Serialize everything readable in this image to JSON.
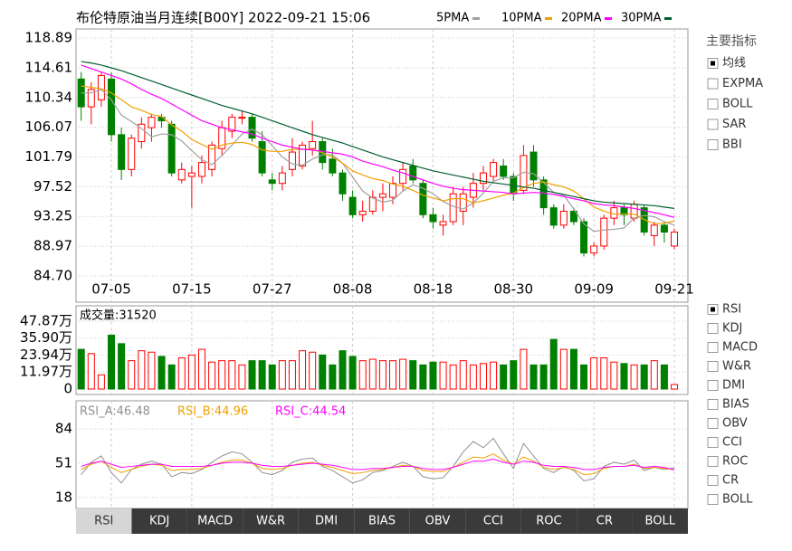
{
  "header": {
    "title": "布伦特原油当月连续[B00Y] 2022-09-21 15:06"
  },
  "chart_data": [
    {
      "type": "candlestick",
      "categories": [
        null,
        null,
        null,
        "07-05",
        null,
        null,
        null,
        null,
        null,
        null,
        null,
        "07-15",
        null,
        null,
        null,
        null,
        null,
        null,
        null,
        "07-27",
        null,
        null,
        null,
        null,
        null,
        null,
        null,
        "08-08",
        null,
        null,
        null,
        null,
        null,
        null,
        null,
        "08-18",
        null,
        null,
        null,
        null,
        null,
        null,
        null,
        "08-30",
        null,
        null,
        null,
        null,
        null,
        null,
        null,
        "09-09",
        null,
        null,
        null,
        null,
        null,
        null,
        null,
        "09-21"
      ],
      "open": [
        113,
        109,
        110,
        113,
        105,
        100,
        104,
        106,
        107.5,
        106.5,
        98.5,
        99,
        99,
        100,
        103,
        105.5,
        107.5,
        107.5,
        104,
        98.5,
        98,
        100,
        100.5,
        103,
        104,
        101.5,
        99.5,
        96,
        93.5,
        94,
        96,
        96,
        98,
        100.5,
        98,
        93.5,
        92,
        92.5,
        94,
        96,
        98,
        99,
        100.5,
        99,
        97,
        102.5,
        98.5,
        94.5,
        92,
        94,
        92.5,
        88,
        89,
        93,
        94.5,
        93,
        94.5,
        90.5,
        92,
        89
      ],
      "high": [
        114,
        112.5,
        114,
        114,
        106,
        105,
        107.5,
        108,
        108,
        107,
        101,
        100.5,
        102,
        104,
        107,
        108,
        108.5,
        108,
        105.5,
        99.5,
        100.5,
        104.5,
        104,
        107,
        104.5,
        103,
        100,
        97,
        95.5,
        97,
        98,
        99,
        101,
        101.5,
        98.5,
        94.5,
        93.5,
        97.5,
        97.5,
        99.5,
        100.5,
        101.5,
        101.5,
        99.5,
        103.5,
        103.5,
        99,
        95,
        95,
        94.5,
        93,
        89.5,
        93.5,
        95.5,
        95,
        95.5,
        95,
        92.5,
        92.5,
        91.5
      ],
      "low": [
        107,
        106.5,
        109,
        104,
        98.5,
        99,
        103,
        104,
        106,
        99,
        98,
        94.5,
        98,
        99,
        102,
        104.5,
        106.5,
        104,
        99,
        97,
        97,
        99,
        100,
        102,
        100,
        99,
        95.5,
        93,
        92.5,
        93.5,
        94,
        95,
        97,
        98,
        93,
        91.5,
        90.5,
        92,
        92,
        94.5,
        97,
        98,
        98.5,
        95.5,
        96.5,
        97.5,
        93.5,
        91.5,
        91.5,
        92,
        87.5,
        87.5,
        88.5,
        92,
        92,
        92.5,
        90.5,
        89,
        89.5,
        88.5
      ],
      "close": [
        109,
        111.5,
        113.5,
        105,
        100,
        104.5,
        106.5,
        107.5,
        107,
        99.5,
        100,
        99.5,
        101,
        103.5,
        106,
        107.5,
        107.5,
        104.5,
        99.5,
        98,
        99.5,
        102.5,
        103.5,
        104,
        101,
        99.5,
        96.5,
        93.5,
        94,
        96,
        96.5,
        98,
        100,
        98.5,
        93.5,
        92.5,
        92.5,
        96.5,
        96.5,
        98,
        99.5,
        101,
        99,
        96.5,
        102,
        98.5,
        94.5,
        92,
        94,
        92.5,
        88,
        89,
        93,
        94.5,
        93.5,
        95,
        91,
        92,
        91,
        91
      ],
      "up_color": "#ff0000",
      "down_color": "#008000",
      "ylim": [
        84.7,
        118.89
      ],
      "yticks": [
        {
          "value": 84.7,
          "label": "84.70"
        },
        88.97,
        93.25,
        97.52,
        101.79,
        106.07,
        110.34,
        114.61,
        118.89
      ],
      "grid": true,
      "series": [
        {
          "name": "5PMA",
          "color": "#a0a0a0",
          "values": [
            111,
            111,
            111.5,
            110,
            107.8,
            106.9,
            105.9,
            104.7,
            105.1,
            105,
            104.1,
            102.7,
            101.4,
            100.7,
            102,
            103.5,
            105.1,
            105.8,
            105,
            103.4,
            101.8,
            100.8,
            100.6,
            101.5,
            102.1,
            102.1,
            100.9,
            98.9,
            96.9,
            95.9,
            95.3,
            95.6,
            96.9,
            97.8,
            97.3,
            96.5,
            95.4,
            94.7,
            94.3,
            95.2,
            96.6,
            98.3,
            98.8,
            98.8,
            99.6,
            99.4,
            98.1,
            96.7,
            96.3,
            94.3,
            92.2,
            91.1,
            91.3,
            91.4,
            91.6,
            93,
            93.4,
            93.2,
            92.5,
            92
          ]
        },
        {
          "name": "10PMA",
          "color": "#f0a000",
          "values": [
            112,
            111.8,
            111.6,
            111,
            110,
            109,
            108.5,
            107.9,
            107.6,
            106.4,
            105.5,
            104.3,
            103.6,
            102.9,
            103.5,
            103.8,
            103.9,
            103.6,
            102.8,
            102.6,
            102.6,
            102.9,
            102.9,
            102.9,
            102.4,
            101.8,
            100.9,
            99.8,
            99.2,
            98.7,
            98.4,
            97.9,
            97.6,
            97,
            96.3,
            95.9,
            95.5,
            95.8,
            95.8,
            95.2,
            95.5,
            95.9,
            96.3,
            96.6,
            97.4,
            98,
            98.2,
            97.8,
            97.5,
            96.9,
            95.8,
            94.6,
            94,
            93.6,
            93.6,
            93.6,
            92.8,
            92.2,
            92.3,
            92.6
          ]
        },
        {
          "name": "20PMA",
          "color": "#ff00ff",
          "values": [
            115,
            114.5,
            114,
            113.5,
            113,
            112.3,
            111.5,
            110.8,
            110.2,
            109.4,
            108.6,
            107.8,
            107,
            106.5,
            106,
            105.7,
            105.4,
            105.1,
            104.5,
            104,
            103.5,
            103.2,
            102.9,
            102.8,
            102.6,
            102.4,
            102.2,
            101.8,
            101.2,
            100.8,
            100.4,
            99.9,
            99.5,
            99,
            98.5,
            98,
            97.6,
            97.3,
            97.1,
            97,
            96.9,
            96.8,
            96.7,
            96.5,
            96.6,
            96.7,
            96.6,
            96.4,
            96.1,
            95.8,
            95.5,
            95.1,
            94.9,
            94.8,
            94.6,
            94.4,
            94.1,
            93.8,
            93.5,
            93.1
          ]
        },
        {
          "name": "30PMA",
          "color": "#006030",
          "values": [
            115.5,
            115.3,
            115,
            114.6,
            114.2,
            113.7,
            113.2,
            112.7,
            112.2,
            111.7,
            111.2,
            110.7,
            110.2,
            109.7,
            109.2,
            108.8,
            108.4,
            108,
            107.5,
            107,
            106.5,
            106,
            105.5,
            105,
            104.6,
            104.2,
            103.8,
            103.3,
            102.8,
            102.3,
            101.8,
            101.4,
            101,
            100.6,
            100.2,
            99.8,
            99.5,
            99.2,
            98.9,
            98.6,
            98.3,
            98.1,
            97.9,
            97.7,
            97.5,
            97.3,
            97,
            96.7,
            96.4,
            96.1,
            95.8,
            95.5,
            95.3,
            95.2,
            95.1,
            95,
            94.9,
            94.8,
            94.6,
            94.4
          ]
        }
      ]
    },
    {
      "type": "bar",
      "label": "成交量:31520",
      "values": [
        28,
        25,
        10,
        38,
        32,
        20,
        27,
        26,
        23,
        17,
        22,
        24,
        28,
        19,
        20,
        20,
        17,
        20,
        20,
        17,
        20,
        20,
        27,
        26,
        24,
        17,
        27,
        23,
        20,
        21,
        20,
        20,
        21,
        20,
        17,
        19,
        19,
        17,
        20,
        17,
        18,
        19,
        17,
        20,
        28,
        17,
        17,
        35,
        28,
        28,
        17,
        22,
        22,
        19,
        18,
        17,
        17,
        20,
        17,
        3.15
      ],
      "ylim": [
        0,
        57.4
      ],
      "yticks": [
        0,
        {
          "value": 11.97,
          "label": "11.97万"
        },
        {
          "value": 23.94,
          "label": "23.94万"
        },
        {
          "value": 35.9,
          "label": "35.90万"
        },
        {
          "value": 47.87,
          "label": "47.87万"
        }
      ]
    },
    {
      "type": "line",
      "series": [
        {
          "name": "RSI_A:46.48",
          "color": "#909090",
          "values": [
            40,
            52,
            58,
            42,
            32,
            45,
            50,
            53,
            50,
            38,
            42,
            41,
            45,
            52,
            58,
            62,
            60,
            52,
            42,
            40,
            44,
            52,
            55,
            56,
            48,
            44,
            38,
            32,
            35,
            42,
            44,
            48,
            52,
            48,
            38,
            36,
            37,
            48,
            62,
            72,
            66,
            75,
            60,
            46,
            70,
            58,
            46,
            42,
            48,
            44,
            34,
            36,
            48,
            52,
            50,
            54,
            44,
            47,
            45,
            46.48
          ]
        },
        {
          "name": "RSI_B:44.96",
          "color": "#f0a000",
          "values": [
            45,
            50,
            53,
            47,
            42,
            45,
            48,
            50,
            49,
            44,
            45,
            45,
            46,
            49,
            52,
            54,
            54,
            51,
            46,
            45,
            46,
            49,
            51,
            52,
            49,
            47,
            44,
            41,
            42,
            44,
            45,
            47,
            49,
            48,
            44,
            43,
            43,
            47,
            52,
            57,
            56,
            60,
            54,
            50,
            57,
            53,
            47,
            45,
            47,
            45,
            40,
            41,
            46,
            48,
            48,
            50,
            46,
            47,
            46,
            44.96
          ]
        },
        {
          "name": "RSI_C:44.54",
          "color": "#ff00ff",
          "values": [
            48,
            51,
            53,
            50,
            47,
            48,
            49,
            50,
            50,
            48,
            48,
            48,
            48,
            49,
            51,
            52,
            52,
            51,
            49,
            48,
            48,
            49,
            50,
            51,
            50,
            49,
            47,
            45,
            45,
            46,
            46,
            47,
            48,
            48,
            46,
            45,
            45,
            47,
            50,
            53,
            53,
            55,
            52,
            50,
            53,
            52,
            49,
            48,
            48,
            47,
            45,
            45,
            47,
            48,
            48,
            49,
            47,
            48,
            47,
            44.54
          ]
        }
      ],
      "ylim": [
        10,
        92
      ],
      "yticks": [
        18,
        51,
        84
      ]
    }
  ],
  "sidebar": {
    "title": "主要指标",
    "main": [
      {
        "label": "均线",
        "checked": true
      },
      {
        "label": "EXPMA",
        "checked": false
      },
      {
        "label": "BOLL",
        "checked": false
      },
      {
        "label": "SAR",
        "checked": false
      },
      {
        "label": "BBI",
        "checked": false
      }
    ],
    "sub": [
      {
        "label": "RSI",
        "checked": true
      },
      {
        "label": "KDJ",
        "checked": false
      },
      {
        "label": "MACD",
        "checked": false
      },
      {
        "label": "W&R",
        "checked": false
      },
      {
        "label": "DMI",
        "checked": false
      },
      {
        "label": "BIAS",
        "checked": false
      },
      {
        "label": "OBV",
        "checked": false
      },
      {
        "label": "CCI",
        "checked": false
      },
      {
        "label": "ROC",
        "checked": false
      },
      {
        "label": "CR",
        "checked": false
      },
      {
        "label": "BOLL",
        "checked": false
      }
    ]
  },
  "tabs": {
    "items": [
      "RSI",
      "KDJ",
      "MACD",
      "W&R",
      "DMI",
      "BIAS",
      "OBV",
      "CCI",
      "ROC",
      "CR",
      "BOLL"
    ],
    "active": 0
  }
}
